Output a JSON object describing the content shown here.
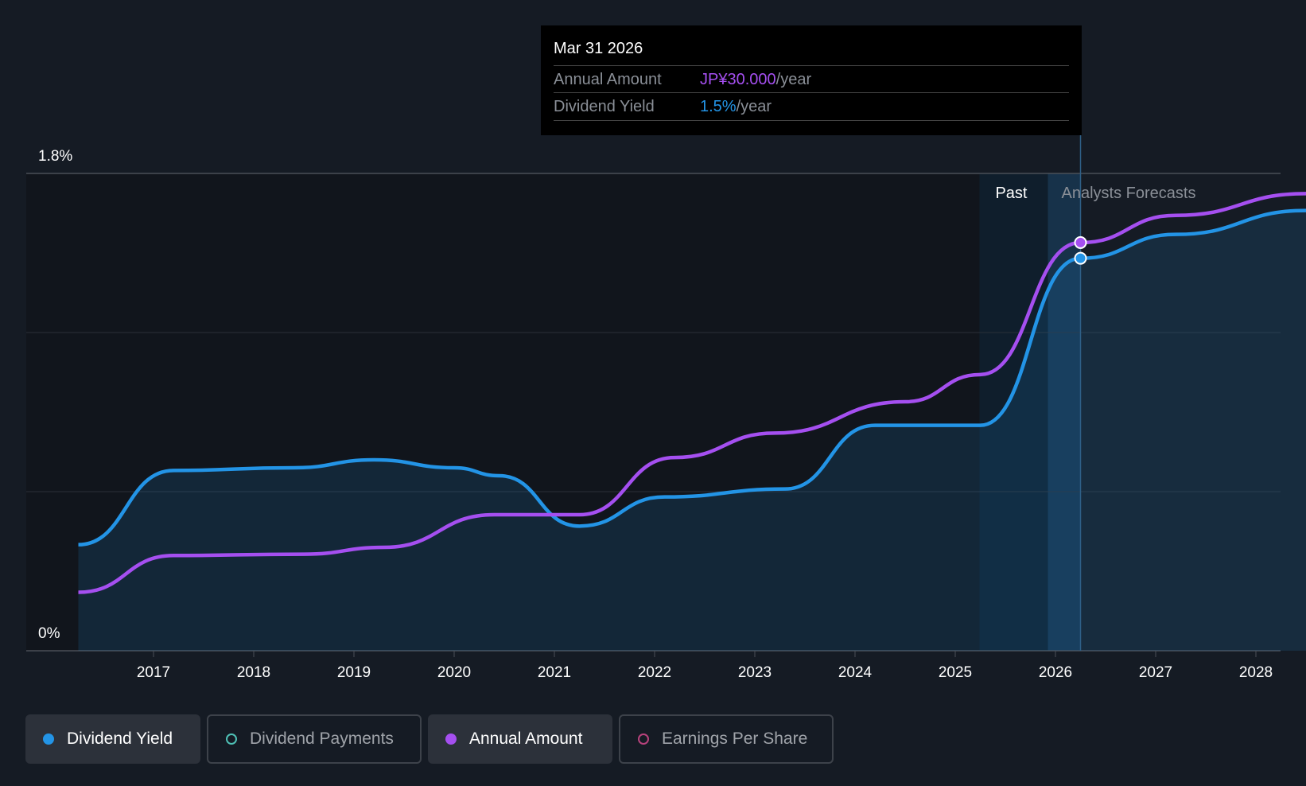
{
  "tooltip": {
    "date": "Mar 31 2026",
    "rows": [
      {
        "label": "Annual Amount",
        "value": "JP¥30.000",
        "unit": "/year",
        "color": "#a54ff0"
      },
      {
        "label": "Dividend Yield",
        "value": "1.5%",
        "unit": "/year",
        "color": "#2394e6"
      }
    ]
  },
  "legend": [
    {
      "label": "Dividend Yield",
      "color": "#2394e6",
      "active": true
    },
    {
      "label": "Dividend Payments",
      "color": "#4fc1b6",
      "active": false
    },
    {
      "label": "Annual Amount",
      "color": "#a54ff0",
      "active": true
    },
    {
      "label": "Earnings Per Share",
      "color": "#b8427c",
      "active": false
    }
  ],
  "chart_data": {
    "type": "line",
    "y_axis_labels": [
      "1.8%",
      "0%"
    ],
    "ylim": [
      0,
      1.8
    ],
    "xlim": [
      2016.0,
      2028.5
    ],
    "x_ticks": [
      "2017",
      "2018",
      "2019",
      "2020",
      "2021",
      "2022",
      "2023",
      "2024",
      "2025",
      "2026",
      "2027",
      "2028"
    ],
    "region_labels": {
      "past": "Past",
      "forecast": "Analysts Forecasts"
    },
    "past_end": 2026.25,
    "series": [
      {
        "name": "Dividend Yield",
        "unit": "%",
        "color": "#2394e6",
        "x": [
          2016.25,
          2017.2,
          2018.4,
          2019.2,
          2020.0,
          2020.45,
          2021.25,
          2022.1,
          2023.3,
          2024.2,
          2025.25,
          2026.25,
          2027.2,
          2028.5
        ],
        "values": [
          0.4,
          0.68,
          0.69,
          0.72,
          0.69,
          0.66,
          0.47,
          0.58,
          0.61,
          0.85,
          0.85,
          1.48,
          1.57,
          1.66
        ]
      },
      {
        "name": "Annual Amount",
        "unit": "JPY",
        "color": "#a54ff0",
        "x": [
          2016.25,
          2017.2,
          2018.5,
          2019.3,
          2020.4,
          2021.25,
          2022.2,
          2023.2,
          2024.5,
          2025.25,
          2026.25,
          2027.2,
          2028.5
        ],
        "values": [
          4.3,
          7.0,
          7.1,
          7.6,
          10.0,
          10.0,
          14.2,
          16.0,
          18.3,
          20.3,
          30.0,
          32.0,
          33.6
        ]
      }
    ],
    "highlight_x": 2026.25
  }
}
